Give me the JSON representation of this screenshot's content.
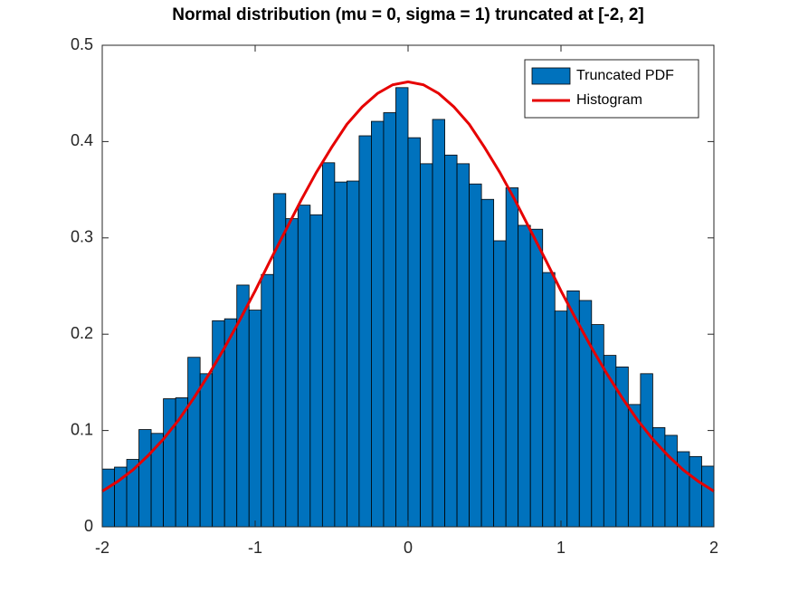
{
  "chart_data": {
    "type": "histogram",
    "title": "Normal distribution (mu = 0, sigma = 1) truncated at [-2, 2]",
    "bins": [
      -2,
      -1.92,
      -1.84,
      -1.76,
      -1.68,
      -1.6,
      -1.52,
      -1.44,
      -1.36,
      -1.28,
      -1.2,
      -1.12,
      -1.04,
      -0.96,
      -0.88,
      -0.8,
      -0.72,
      -0.64,
      -0.56,
      -0.48,
      -0.4,
      -0.32,
      -0.24,
      -0.16,
      -0.08,
      0,
      0.08,
      0.16,
      0.24,
      0.32,
      0.4,
      0.48,
      0.56,
      0.64,
      0.72,
      0.8,
      0.88,
      0.96,
      1.04,
      1.12,
      1.2,
      1.28,
      1.36,
      1.44,
      1.52,
      1.6,
      1.68,
      1.76,
      1.84,
      1.92,
      2
    ],
    "series": [
      {
        "name": "Truncated PDF",
        "type": "histogram",
        "color": "#0072bd",
        "values": [
          0.06,
          0.062,
          0.07,
          0.101,
          0.097,
          0.133,
          0.134,
          0.176,
          0.159,
          0.214,
          0.216,
          0.251,
          0.225,
          0.262,
          0.346,
          0.32,
          0.334,
          0.324,
          0.378,
          0.358,
          0.359,
          0.406,
          0.421,
          0.43,
          0.456,
          0.404,
          0.377,
          0.423,
          0.386,
          0.377,
          0.356,
          0.34,
          0.297,
          0.352,
          0.313,
          0.309,
          0.264,
          0.224,
          0.245,
          0.235,
          0.21,
          0.178,
          0.166,
          0.127,
          0.159,
          0.103,
          0.095,
          0.078,
          0.073,
          0.063
        ]
      },
      {
        "name": "Histogram",
        "type": "line",
        "color": "#e60000",
        "x": [
          -2,
          -1.9,
          -1.8,
          -1.7,
          -1.6,
          -1.5,
          -1.4,
          -1.3,
          -1.2,
          -1.1,
          -1,
          -0.9,
          -0.8,
          -0.7,
          -0.6,
          -0.5,
          -0.4,
          -0.3,
          -0.2,
          -0.1,
          0,
          0.1,
          0.2,
          0.3,
          0.4,
          0.5,
          0.6,
          0.7,
          0.8,
          0.9,
          1,
          1.1,
          1.2,
          1.3,
          1.4,
          1.5,
          1.6,
          1.7,
          1.8,
          1.9,
          2
        ],
        "values": [
          0.037,
          0.047,
          0.059,
          0.074,
          0.091,
          0.111,
          0.134,
          0.159,
          0.186,
          0.215,
          0.245,
          0.277,
          0.308,
          0.339,
          0.368,
          0.394,
          0.418,
          0.436,
          0.45,
          0.459,
          0.462,
          0.459,
          0.45,
          0.436,
          0.418,
          0.394,
          0.368,
          0.339,
          0.308,
          0.277,
          0.245,
          0.215,
          0.186,
          0.159,
          0.134,
          0.111,
          0.091,
          0.074,
          0.059,
          0.047,
          0.037
        ]
      }
    ],
    "xlim": [
      -2,
      2
    ],
    "xticks": [
      -2,
      -1,
      0,
      1,
      2
    ],
    "ylim": [
      0,
      0.5
    ],
    "yticks": [
      0,
      0.1,
      0.2,
      0.3,
      0.4,
      0.5
    ],
    "legend": "top-right"
  }
}
